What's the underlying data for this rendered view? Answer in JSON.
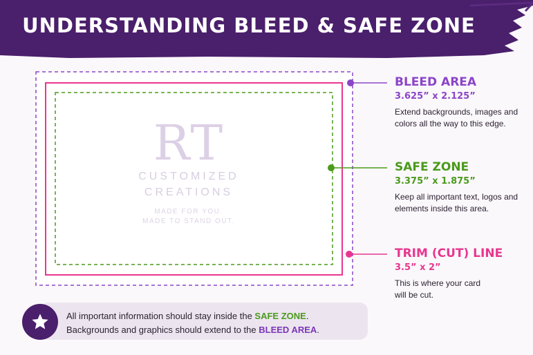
{
  "banner": {
    "title": "UNDERSTANDING BLEED & SAFE ZONE",
    "color": "#4a1f6b"
  },
  "card": {
    "logo_mark": "RT",
    "logo_line1": "CUSTOMIZED",
    "logo_line2": "CREATIONS",
    "tagline1": "MADE FOR YOU.",
    "tagline2": "MADE TO STAND OUT."
  },
  "bleed": {
    "title": "BLEED AREA",
    "size": "3.625” x 2.125”",
    "desc": "Extend backgrounds, images and colors all the way to this edge.",
    "color": "#8a45c8"
  },
  "safe": {
    "title": "SAFE ZONE",
    "size": "3.375” x 1.875”",
    "desc": "Keep all important text, logos and elements inside this area.",
    "color": "#4a9a1c"
  },
  "trim": {
    "title": "TRIM (CUT) LINE",
    "size": "3.5” x 2”",
    "desc": "This is where your card will be cut.",
    "color": "#e8368f"
  },
  "note": {
    "icon": "star-icon",
    "line1_prefix": "All important information should stay inside the ",
    "line1_highlight": "SAFE ZONE",
    "line1_suffix": ".",
    "line2_prefix": "Backgrounds and graphics should extend to the ",
    "line2_highlight": "BLEED AREA",
    "line2_suffix": "."
  }
}
